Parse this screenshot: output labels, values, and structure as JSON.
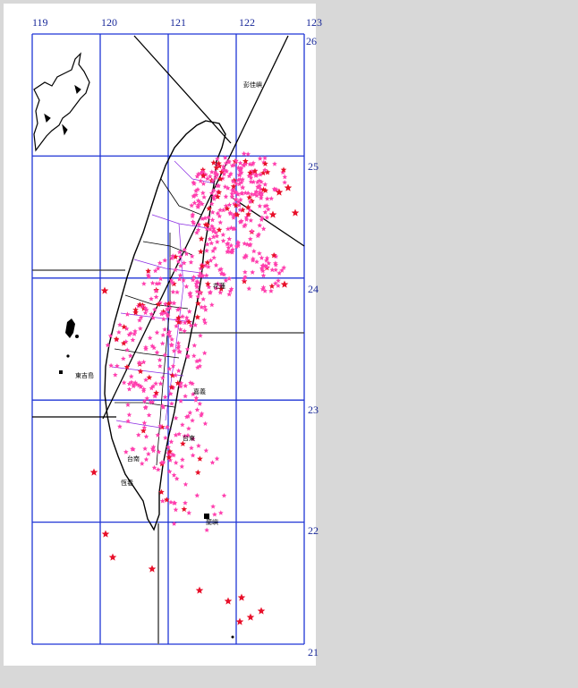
{
  "map": {
    "lon_labels": [
      "119",
      "120",
      "121",
      "122",
      "123"
    ],
    "lat_labels": [
      "26",
      "25",
      "24",
      "23",
      "22",
      "21"
    ],
    "extent": {
      "lon_min": 119,
      "lon_max": 123,
      "lat_min": 21,
      "lat_max": 26
    },
    "colors": {
      "background": "#d8d8d8",
      "panel": "#ffffff",
      "gridline": "#1f35d6",
      "coastline": "#000000",
      "boundary": "#8a2be2",
      "epicenter_primary": "#ff3fae",
      "epicenter_secondary": "#e8102a"
    },
    "place_labels": [
      "彭佳嶼",
      "蘭嶼",
      "東吉島",
      "台東",
      "恆春",
      "花蓮",
      "台南",
      "嘉義"
    ]
  }
}
